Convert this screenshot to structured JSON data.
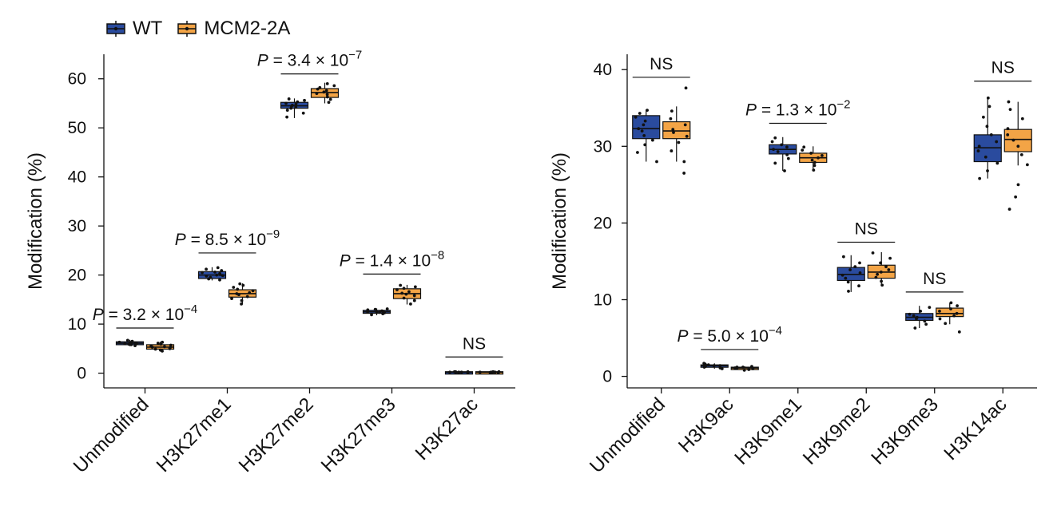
{
  "legend": [
    {
      "label": "WT",
      "color": "#2A4B9E"
    },
    {
      "label": "MCM2-2A",
      "color": "#F3A446"
    }
  ],
  "chart_data": [
    {
      "type": "box",
      "ylabel": "Modification (%)",
      "ylim": [
        -3,
        65
      ],
      "yticks": [
        0,
        10,
        20,
        30,
        40,
        50,
        60
      ],
      "categories": [
        "Unmodified",
        "H3K27me1",
        "H3K27me2",
        "H3K27me3",
        "H3K27ac"
      ],
      "series": [
        {
          "name": "WT",
          "color": "#2A4B9E",
          "boxes": [
            {
              "q1": 5.8,
              "median": 6.1,
              "q3": 6.4,
              "min": 5.5,
              "max": 6.8,
              "points": [
                5.6,
                5.8,
                5.9,
                6.0,
                6.0,
                6.1,
                6.1,
                6.2,
                6.2,
                6.3,
                6.4,
                6.5,
                6.7
              ]
            },
            {
              "q1": 19.3,
              "median": 20.0,
              "q3": 20.7,
              "min": 18.9,
              "max": 21.6,
              "points": [
                19.0,
                19.2,
                19.5,
                19.8,
                19.9,
                20.0,
                20.1,
                20.3,
                20.5,
                20.6,
                20.9,
                21.2,
                21.5
              ]
            },
            {
              "q1": 54.0,
              "median": 54.5,
              "q3": 55.2,
              "min": 52.0,
              "max": 56.0,
              "points": [
                52.2,
                53.0,
                53.6,
                54.0,
                54.2,
                54.4,
                54.6,
                54.8,
                55.0,
                55.3,
                55.6,
                55.9
              ]
            },
            {
              "q1": 12.2,
              "median": 12.5,
              "q3": 12.8,
              "min": 11.8,
              "max": 13.2,
              "points": [
                11.9,
                12.1,
                12.3,
                12.4,
                12.5,
                12.5,
                12.6,
                12.7,
                12.9,
                13.0,
                13.1
              ]
            },
            {
              "q1": 0.1,
              "median": 0.2,
              "q3": 0.3,
              "min": 0.0,
              "max": 0.4,
              "points": [
                0.1,
                0.1,
                0.2,
                0.2,
                0.2,
                0.3,
                0.3,
                0.3,
                0.2
              ]
            }
          ]
        },
        {
          "name": "MCM2-2A",
          "color": "#F3A446",
          "boxes": [
            {
              "q1": 4.9,
              "median": 5.3,
              "q3": 5.8,
              "min": 4.4,
              "max": 6.4,
              "points": [
                4.5,
                4.7,
                4.9,
                5.0,
                5.2,
                5.3,
                5.4,
                5.5,
                5.7,
                5.9,
                6.1,
                6.3
              ]
            },
            {
              "q1": 15.5,
              "median": 16.2,
              "q3": 17.0,
              "min": 14.0,
              "max": 18.3,
              "points": [
                14.1,
                14.8,
                15.2,
                15.6,
                16.0,
                16.2,
                16.4,
                16.8,
                17.1,
                17.5,
                17.9,
                18.2
              ]
            },
            {
              "q1": 56.2,
              "median": 57.2,
              "q3": 58.0,
              "min": 55.0,
              "max": 59.2,
              "points": [
                55.2,
                55.8,
                56.3,
                56.8,
                57.0,
                57.3,
                57.6,
                57.9,
                58.2,
                58.6,
                59.0
              ]
            },
            {
              "q1": 15.2,
              "median": 16.2,
              "q3": 17.2,
              "min": 14.0,
              "max": 18.0,
              "points": [
                14.1,
                14.8,
                15.3,
                15.8,
                16.1,
                16.3,
                16.6,
                17.0,
                17.3,
                17.6,
                17.9
              ]
            },
            {
              "q1": 0.1,
              "median": 0.2,
              "q3": 0.3,
              "min": 0.0,
              "max": 0.4,
              "points": [
                0.1,
                0.2,
                0.2,
                0.2,
                0.3,
                0.3,
                0.2,
                0.1,
                0.2
              ]
            }
          ]
        }
      ],
      "annotations": [
        {
          "index": 0,
          "text": "P = 3.2 × 10",
          "exponent": "−4",
          "y": 9.2
        },
        {
          "index": 1,
          "text": "P = 8.5 × 10",
          "exponent": "−9",
          "y": 24.5
        },
        {
          "index": 2,
          "text": "P = 3.4 × 10",
          "exponent": "−7",
          "y": 61.0
        },
        {
          "index": 3,
          "text": "P = 1.4 × 10",
          "exponent": "−8",
          "y": 20.2
        },
        {
          "index": 4,
          "text": "NS",
          "exponent": "",
          "y": 3.3
        }
      ]
    },
    {
      "type": "box",
      "ylabel": "Modification (%)",
      "ylim": [
        -1.5,
        42
      ],
      "yticks": [
        0,
        10,
        20,
        30,
        40
      ],
      "categories": [
        "Unmodified",
        "H3K9ac",
        "H3K9me1",
        "H3K9me2",
        "H3K9me3",
        "H3K14ac"
      ],
      "series": [
        {
          "name": "WT",
          "color": "#2A4B9E",
          "boxes": [
            {
              "q1": 31.0,
              "median": 32.3,
              "q3": 34.0,
              "min": 28.0,
              "max": 34.8,
              "points": [
                28.0,
                29.2,
                30.2,
                30.8,
                31.4,
                32.0,
                32.3,
                32.8,
                33.3,
                33.8,
                34.3,
                34.7
              ]
            },
            {
              "q1": 1.2,
              "median": 1.4,
              "q3": 1.5,
              "min": 1.0,
              "max": 1.7,
              "points": [
                1.0,
                1.1,
                1.2,
                1.3,
                1.4,
                1.4,
                1.5,
                1.5,
                1.6,
                1.7
              ]
            },
            {
              "q1": 29.0,
              "median": 29.6,
              "q3": 30.2,
              "min": 26.8,
              "max": 31.2,
              "points": [
                26.8,
                27.8,
                28.4,
                28.9,
                29.3,
                29.6,
                29.9,
                30.2,
                30.6,
                31.1
              ]
            },
            {
              "q1": 12.5,
              "median": 13.3,
              "q3": 14.2,
              "min": 11.0,
              "max": 15.8,
              "points": [
                11.1,
                11.8,
                12.3,
                12.8,
                13.2,
                13.5,
                13.9,
                14.3,
                14.8,
                15.6
              ]
            },
            {
              "q1": 7.3,
              "median": 7.7,
              "q3": 8.2,
              "min": 6.3,
              "max": 9.2,
              "points": [
                6.3,
                6.8,
                7.2,
                7.5,
                7.7,
                7.9,
                8.1,
                8.5,
                9.0
              ]
            },
            {
              "q1": 28.0,
              "median": 29.8,
              "q3": 31.5,
              "min": 25.8,
              "max": 36.3,
              "points": [
                25.8,
                26.8,
                27.8,
                28.6,
                29.4,
                30.0,
                30.6,
                31.5,
                32.6,
                33.8,
                35.2,
                36.3
              ]
            }
          ]
        },
        {
          "name": "MCM2-2A",
          "color": "#F3A446",
          "boxes": [
            {
              "q1": 31.0,
              "median": 32.0,
              "q3": 33.2,
              "min": 28.0,
              "max": 35.2,
              "points": [
                26.5,
                28.0,
                29.4,
                30.5,
                31.3,
                31.8,
                32.2,
                32.8,
                33.6,
                34.6,
                37.6
              ]
            },
            {
              "q1": 0.9,
              "median": 1.1,
              "q3": 1.2,
              "min": 0.8,
              "max": 1.3,
              "points": [
                0.8,
                0.9,
                1.0,
                1.1,
                1.1,
                1.2,
                1.2,
                1.3
              ]
            },
            {
              "q1": 27.9,
              "median": 28.5,
              "q3": 29.1,
              "min": 26.9,
              "max": 30.0,
              "points": [
                26.9,
                27.5,
                27.9,
                28.2,
                28.5,
                28.8,
                29.1,
                29.5,
                29.9
              ]
            },
            {
              "q1": 12.8,
              "median": 13.6,
              "q3": 14.5,
              "min": 11.8,
              "max": 16.2,
              "points": [
                11.9,
                12.4,
                12.9,
                13.3,
                13.6,
                13.9,
                14.3,
                14.8,
                15.4,
                16.1
              ]
            },
            {
              "q1": 7.8,
              "median": 8.2,
              "q3": 8.9,
              "min": 6.8,
              "max": 9.6,
              "points": [
                5.8,
                6.9,
                7.5,
                7.9,
                8.2,
                8.5,
                8.8,
                9.2,
                9.6
              ]
            },
            {
              "q1": 29.3,
              "median": 30.9,
              "q3": 32.2,
              "min": 27.5,
              "max": 35.8,
              "points": [
                21.8,
                23.4,
                25.0,
                27.6,
                28.9,
                30.0,
                30.8,
                31.5,
                32.3,
                33.6,
                34.8,
                35.8
              ]
            }
          ]
        }
      ],
      "annotations": [
        {
          "index": 0,
          "text": "NS",
          "exponent": "",
          "y": 39.0
        },
        {
          "index": 1,
          "text": "P = 5.0 × 10",
          "exponent": "−4",
          "y": 3.5
        },
        {
          "index": 2,
          "text": "P = 1.3 × 10",
          "exponent": "−2",
          "y": 33.0
        },
        {
          "index": 3,
          "text": "NS",
          "exponent": "",
          "y": 17.5
        },
        {
          "index": 4,
          "text": "NS",
          "exponent": "",
          "y": 11.0
        },
        {
          "index": 5,
          "text": "NS",
          "exponent": "",
          "y": 38.5
        }
      ]
    }
  ]
}
